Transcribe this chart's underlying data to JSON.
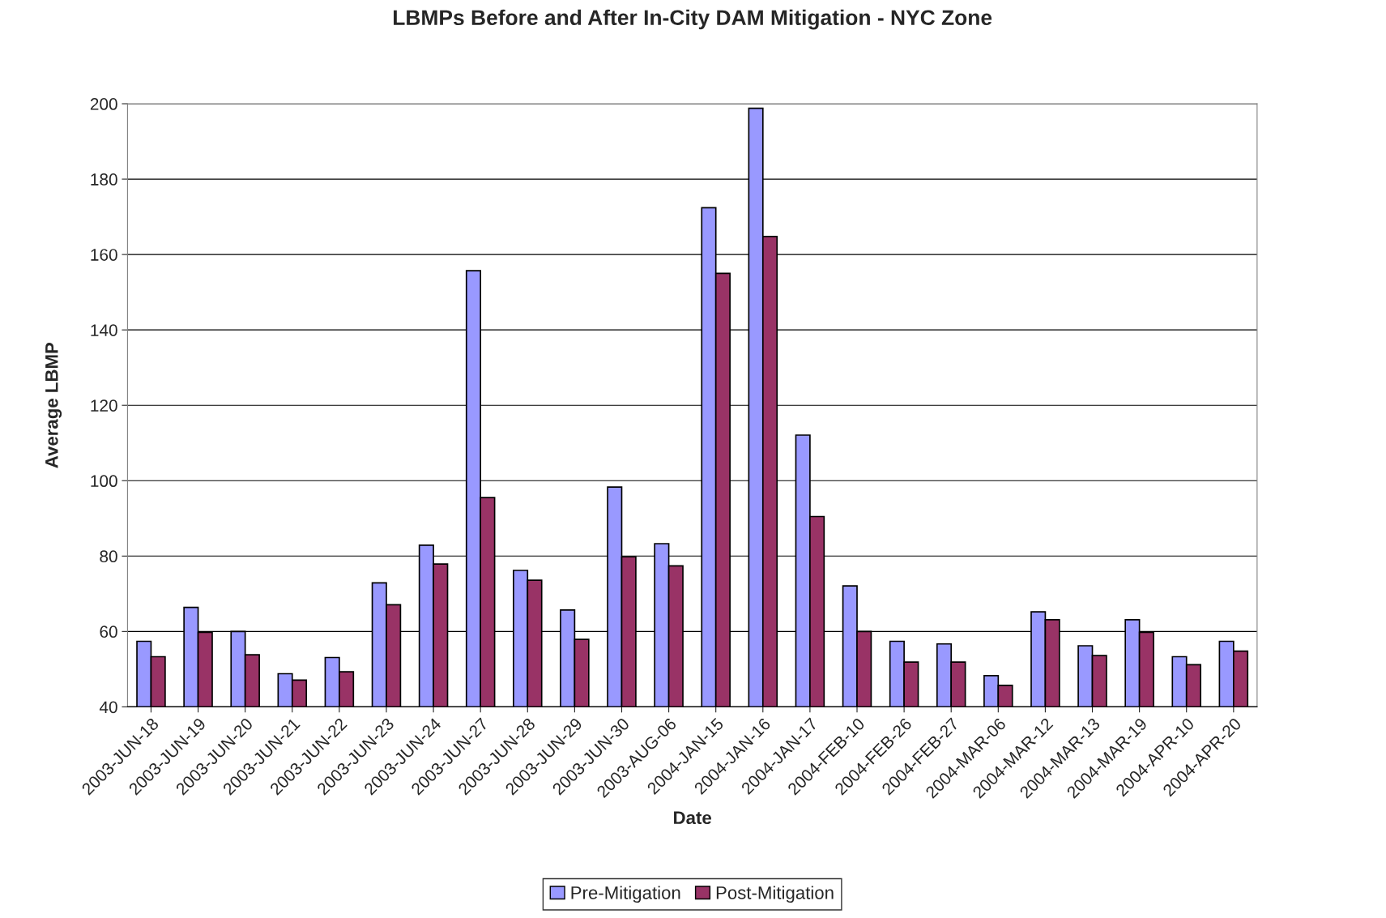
{
  "chart_data": {
    "type": "bar",
    "title": "LBMPs Before and After In-City DAM Mitigation - NYC Zone",
    "xlabel": "Date",
    "ylabel": "Average LBMP",
    "categories": [
      "2003-JUN-18",
      "2003-JUN-19",
      "2003-JUN-20",
      "2003-JUN-21",
      "2003-JUN-22",
      "2003-JUN-23",
      "2003-JUN-24",
      "2003-JUN-27",
      "2003-JUN-28",
      "2003-JUN-29",
      "2003-JUN-30",
      "2003-AUG-06",
      "2004-JAN-15",
      "2004-JAN-16",
      "2004-JAN-17",
      "2004-FEB-10",
      "2004-FEB-26",
      "2004-FEB-27",
      "2004-MAR-06",
      "2004-MAR-12",
      "2004-MAR-13",
      "2004-MAR-19",
      "2004-APR-10",
      "2004-APR-20"
    ],
    "series": [
      {
        "name": "Pre-Mitigation",
        "color": "#9999ff",
        "values": [
          57.4,
          66.4,
          60,
          48.8,
          53.1,
          72.9,
          82.9,
          155.7,
          76.2,
          65.7,
          98.3,
          83.3,
          172.4,
          198.8,
          112.1,
          72.1,
          57.4,
          56.7,
          48.3,
          65.2,
          56.2,
          63.1,
          53.3,
          57.4
        ]
      },
      {
        "name": "Post-Mitigation",
        "color": "#993366",
        "values": [
          53.3,
          59.8,
          53.8,
          47.1,
          49.3,
          67.1,
          77.9,
          95.5,
          73.6,
          57.9,
          79.8,
          77.4,
          155,
          164.8,
          90.5,
          60,
          51.9,
          51.9,
          45.7,
          63.1,
          53.6,
          59.8,
          51.2,
          54.8
        ]
      }
    ],
    "ylim": [
      40,
      200
    ],
    "yticks": [
      40,
      60,
      80,
      100,
      120,
      140,
      160,
      180,
      200
    ],
    "grid": "y",
    "legend": "bottom"
  }
}
